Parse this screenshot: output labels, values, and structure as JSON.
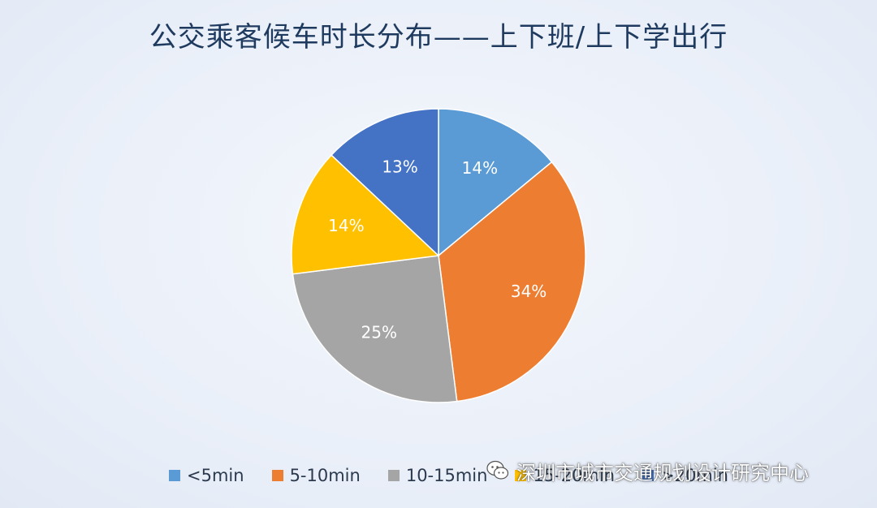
{
  "title": "公交乘客候车时长分布——上下班/上下学出行",
  "chart_data": {
    "type": "pie",
    "title": "公交乘客候车时长分布——上下班/上下学出行",
    "categories": [
      "<5min",
      "5-10min",
      "10-15min",
      "15-20min",
      ">20min"
    ],
    "values": [
      14,
      34,
      25,
      14,
      13
    ],
    "labels": [
      "14%",
      "34%",
      "25%",
      "14%",
      "13%"
    ],
    "colors": [
      "#5b9bd5",
      "#ed7d31",
      "#a5a5a5",
      "#ffc000",
      "#4472c4"
    ],
    "legend_position": "bottom"
  },
  "watermark": {
    "text": "深圳市城市交通规划设计研究中心",
    "icon": "wechat-icon"
  }
}
